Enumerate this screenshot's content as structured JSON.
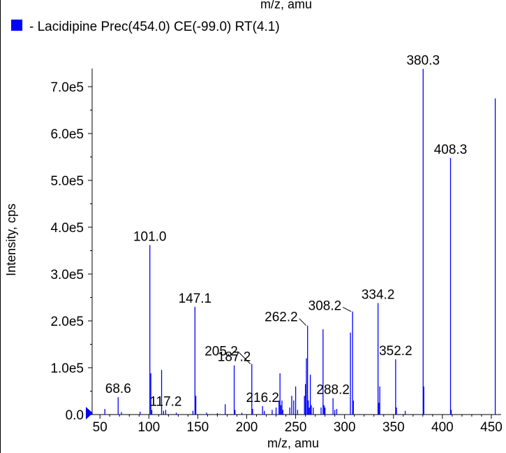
{
  "chart_data": {
    "type": "bar",
    "top_title": "m/z, amu",
    "legend": {
      "label": "- Lacidipine  Prec(454.0) CE(-99.0) RT(4.1)",
      "color": "#0000ff"
    },
    "xlabel": "m/z, amu",
    "ylabel": "Intensity, cps",
    "xlim": [
      42,
      460
    ],
    "ylim": [
      0,
      740000
    ],
    "x_ticks": [
      50,
      100,
      150,
      200,
      250,
      300,
      350,
      400,
      450
    ],
    "y_ticks": [
      {
        "value": 0,
        "label": "0.0"
      },
      {
        "value": 100000,
        "label": "1.0e5"
      },
      {
        "value": 200000,
        "label": "2.0e5"
      },
      {
        "value": 300000,
        "label": "3.0e5"
      },
      {
        "value": 400000,
        "label": "4.0e5"
      },
      {
        "value": 500000,
        "label": "5.0e5"
      },
      {
        "value": 600000,
        "label": "6.0e5"
      },
      {
        "value": 700000,
        "label": "7.0e5"
      }
    ],
    "series_color": "#0000ff",
    "peaks": [
      {
        "mz": 55.0,
        "i": 12000
      },
      {
        "mz": 68.6,
        "i": 37000
      },
      {
        "mz": 72.0,
        "i": 5000
      },
      {
        "mz": 91.0,
        "i": 6000
      },
      {
        "mz": 101.0,
        "i": 362000
      },
      {
        "mz": 102.0,
        "i": 88000
      },
      {
        "mz": 103.0,
        "i": 10000
      },
      {
        "mz": 113.0,
        "i": 95000
      },
      {
        "mz": 115.0,
        "i": 8000
      },
      {
        "mz": 117.2,
        "i": 10000
      },
      {
        "mz": 128.0,
        "i": 4000
      },
      {
        "mz": 145.0,
        "i": 8000
      },
      {
        "mz": 147.1,
        "i": 230000
      },
      {
        "mz": 148.0,
        "i": 40000
      },
      {
        "mz": 159.0,
        "i": 4000
      },
      {
        "mz": 170.0,
        "i": 3000
      },
      {
        "mz": 178.0,
        "i": 22000
      },
      {
        "mz": 187.2,
        "i": 105000
      },
      {
        "mz": 188.0,
        "i": 10000
      },
      {
        "mz": 195.0,
        "i": 4000
      },
      {
        "mz": 205.2,
        "i": 108000
      },
      {
        "mz": 206.0,
        "i": 12000
      },
      {
        "mz": 216.2,
        "i": 18000
      },
      {
        "mz": 218.0,
        "i": 8000
      },
      {
        "mz": 226.0,
        "i": 10000
      },
      {
        "mz": 230.0,
        "i": 15000
      },
      {
        "mz": 233.0,
        "i": 30000
      },
      {
        "mz": 234.0,
        "i": 88000
      },
      {
        "mz": 235.0,
        "i": 20000
      },
      {
        "mz": 236.0,
        "i": 30000
      },
      {
        "mz": 237.0,
        "i": 10000
      },
      {
        "mz": 244.0,
        "i": 15000
      },
      {
        "mz": 246.0,
        "i": 40000
      },
      {
        "mz": 248.0,
        "i": 30000
      },
      {
        "mz": 250.0,
        "i": 60000
      },
      {
        "mz": 252.0,
        "i": 10000
      },
      {
        "mz": 259.0,
        "i": 40000
      },
      {
        "mz": 260.0,
        "i": 65000
      },
      {
        "mz": 261.0,
        "i": 120000
      },
      {
        "mz": 262.2,
        "i": 190000
      },
      {
        "mz": 263.0,
        "i": 30000
      },
      {
        "mz": 264.0,
        "i": 15000
      },
      {
        "mz": 265.0,
        "i": 85000
      },
      {
        "mz": 266.0,
        "i": 20000
      },
      {
        "mz": 268.0,
        "i": 15000
      },
      {
        "mz": 276.0,
        "i": 15000
      },
      {
        "mz": 278.0,
        "i": 182000
      },
      {
        "mz": 279.0,
        "i": 20000
      },
      {
        "mz": 280.0,
        "i": 15000
      },
      {
        "mz": 288.2,
        "i": 35000
      },
      {
        "mz": 290.0,
        "i": 10000
      },
      {
        "mz": 292.0,
        "i": 12000
      },
      {
        "mz": 306.0,
        "i": 175000
      },
      {
        "mz": 308.2,
        "i": 220000
      },
      {
        "mz": 309.0,
        "i": 30000
      },
      {
        "mz": 334.2,
        "i": 238000
      },
      {
        "mz": 335.0,
        "i": 25000
      },
      {
        "mz": 336.0,
        "i": 60000
      },
      {
        "mz": 352.2,
        "i": 118000
      },
      {
        "mz": 353.0,
        "i": 15000
      },
      {
        "mz": 362.0,
        "i": 8000
      },
      {
        "mz": 380.3,
        "i": 738000
      },
      {
        "mz": 381.0,
        "i": 60000
      },
      {
        "mz": 408.3,
        "i": 548000
      },
      {
        "mz": 409.0,
        "i": 10000
      },
      {
        "mz": 454.0,
        "i": 675000
      }
    ],
    "annotations": [
      {
        "text": "68.6",
        "mz": 68.6,
        "i": 37000
      },
      {
        "text": "101.0",
        "mz": 101.0,
        "i": 362000
      },
      {
        "text": "117.2",
        "mz": 117.2,
        "i": 10000
      },
      {
        "text": "147.1",
        "mz": 147.1,
        "i": 230000
      },
      {
        "text": "187.2",
        "mz": 187.2,
        "i": 105000
      },
      {
        "text": "205.2",
        "mz": 205.2,
        "i": 108000
      },
      {
        "text": "216.2",
        "mz": 216.2,
        "i": 18000
      },
      {
        "text": "262.2",
        "mz": 262.2,
        "i": 190000
      },
      {
        "text": "288.2",
        "mz": 288.2,
        "i": 35000
      },
      {
        "text": "308.2",
        "mz": 308.2,
        "i": 220000
      },
      {
        "text": "334.2",
        "mz": 334.2,
        "i": 238000
      },
      {
        "text": "352.2",
        "mz": 352.2,
        "i": 118000
      },
      {
        "text": "380.3",
        "mz": 380.3,
        "i": 738000
      },
      {
        "text": "408.3",
        "mz": 408.3,
        "i": 548000
      }
    ],
    "precursor_marker_color": "#0000ff"
  }
}
